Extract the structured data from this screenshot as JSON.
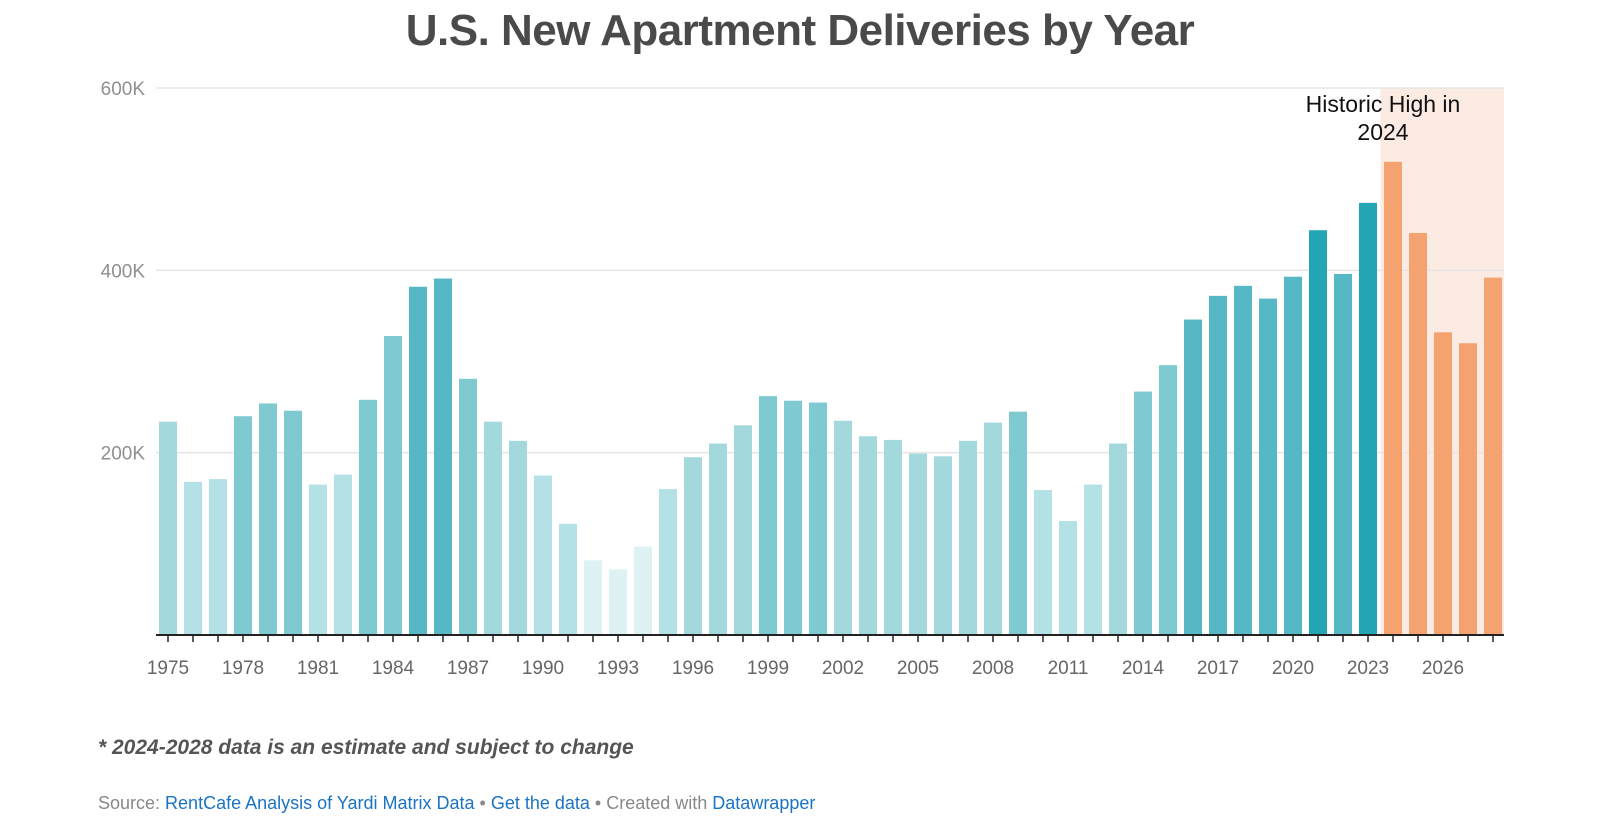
{
  "chart_data": {
    "type": "bar",
    "title": "U.S. New Apartment Deliveries by Year",
    "x": [
      1975,
      1976,
      1977,
      1978,
      1979,
      1980,
      1981,
      1982,
      1983,
      1984,
      1985,
      1986,
      1987,
      1988,
      1989,
      1990,
      1991,
      1992,
      1993,
      1994,
      1995,
      1996,
      1997,
      1998,
      1999,
      2000,
      2001,
      2002,
      2003,
      2004,
      2005,
      2006,
      2007,
      2008,
      2009,
      2010,
      2011,
      2012,
      2013,
      2014,
      2015,
      2016,
      2017,
      2018,
      2019,
      2020,
      2021,
      2022,
      2023,
      2024,
      2025,
      2026,
      2027,
      2028
    ],
    "values": [
      234000,
      168000,
      171000,
      240000,
      254000,
      246000,
      165000,
      176000,
      258000,
      328000,
      382000,
      391000,
      281000,
      234000,
      213000,
      175000,
      122000,
      82000,
      72000,
      97000,
      160000,
      195000,
      210000,
      230000,
      262000,
      257000,
      255000,
      235000,
      218000,
      214000,
      199000,
      196000,
      213000,
      233000,
      245000,
      159000,
      125000,
      165000,
      210000,
      267000,
      296000,
      346000,
      372000,
      383000,
      369000,
      393000,
      444000,
      396000,
      474000,
      519000,
      441000,
      332000,
      320000,
      392000
    ],
    "estimate_from": 2024,
    "estimate_range": [
      2024,
      2028
    ],
    "x_tick_labels": [
      "1975",
      "1978",
      "1981",
      "1984",
      "1987",
      "1990",
      "1993",
      "1996",
      "1999",
      "2002",
      "2005",
      "2008",
      "2011",
      "2014",
      "2017",
      "2020",
      "2023",
      "2026"
    ],
    "y_ticks": [
      200000,
      400000,
      600000
    ],
    "y_tick_labels": [
      "200K",
      "400K",
      "600K"
    ],
    "ylim": [
      0,
      600000
    ],
    "grid": true,
    "annotation": {
      "line1": "Historic High in",
      "line2": "2024"
    },
    "colors": {
      "teal_scale": [
        "#dff2f3",
        "#b3e1e5",
        "#a3d8dc",
        "#7fcad1",
        "#55b8c4",
        "#24a5b3"
      ],
      "estimate_bar": "#f4a26f",
      "estimate_shade": "#fcebe2",
      "grid": "#e5e5e5",
      "axis": "#222222",
      "tick_label": "#8f8f8f"
    }
  },
  "footnote": "* 2024-2028 data is an estimate and subject to change",
  "source": {
    "prefix": "Source: ",
    "link_text": "RentCafe Analysis of Yardi Matrix Data",
    "separator": " • ",
    "get_data": "Get the data",
    "created_with": "Created with ",
    "datawrapper": "Datawrapper"
  }
}
